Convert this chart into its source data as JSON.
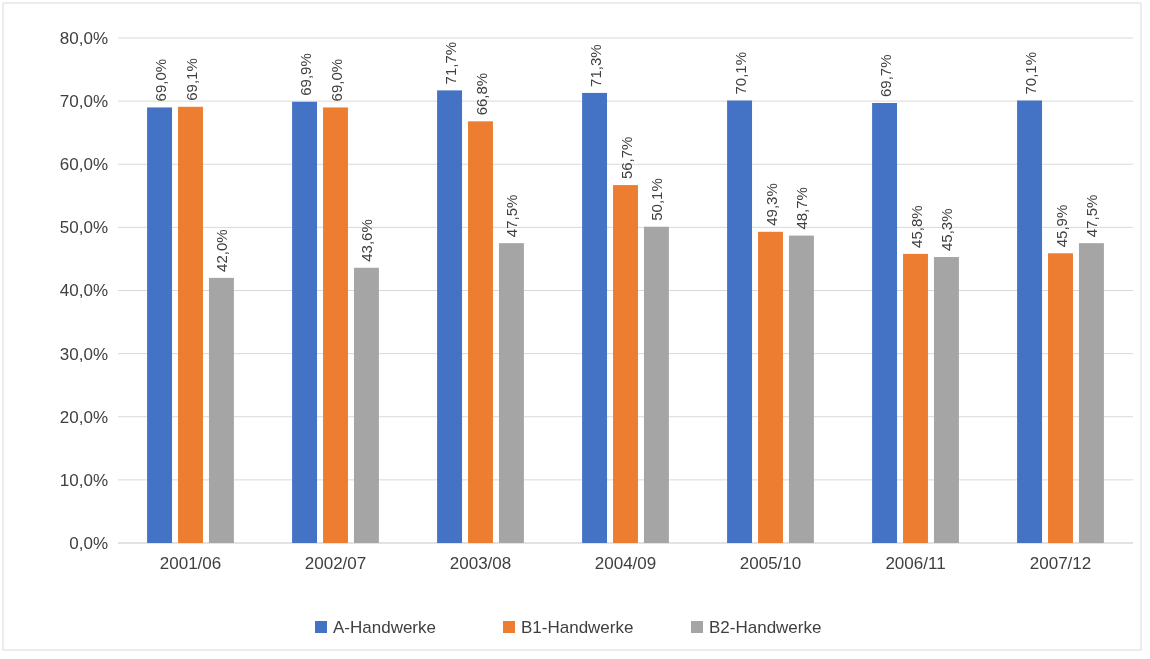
{
  "chart_data": {
    "type": "bar",
    "categories": [
      "2001/06",
      "2002/07",
      "2003/08",
      "2004/09",
      "2005/10",
      "2006/11",
      "2007/12"
    ],
    "series": [
      {
        "name": "A-Handwerke",
        "color": "#4472c4",
        "values": [
          69.0,
          69.9,
          71.7,
          71.3,
          70.1,
          69.7,
          70.1
        ],
        "value_labels": [
          "69,0%",
          "69,9%",
          "71,7%",
          "71,3%",
          "70,1%",
          "69,7%",
          "70,1%"
        ]
      },
      {
        "name": "B1-Handwerke",
        "color": "#ed7d31",
        "values": [
          69.1,
          69.0,
          66.8,
          56.7,
          49.3,
          45.8,
          45.9
        ],
        "value_labels": [
          "69,1%",
          "69,0%",
          "66,8%",
          "56,7%",
          "49,3%",
          "45,8%",
          "45,9%"
        ]
      },
      {
        "name": "B2-Handwerke",
        "color": "#a5a5a5",
        "values": [
          42.0,
          43.6,
          47.5,
          50.1,
          48.7,
          45.3,
          47.5
        ],
        "value_labels": [
          "42,0%",
          "43,6%",
          "47,5%",
          "50,1%",
          "48,7%",
          "45,3%",
          "47,5%"
        ]
      }
    ],
    "ylim": [
      0,
      80
    ],
    "yticks": [
      {
        "value": 0,
        "label": "0,0%"
      },
      {
        "value": 10,
        "label": "10,0%"
      },
      {
        "value": 20,
        "label": "20,0%"
      },
      {
        "value": 30,
        "label": "30,0%"
      },
      {
        "value": 40,
        "label": "40,0%"
      },
      {
        "value": 50,
        "label": "50,0%"
      },
      {
        "value": 60,
        "label": "60,0%"
      },
      {
        "value": 70,
        "label": "70,0%"
      },
      {
        "value": 80,
        "label": "80,0%"
      }
    ],
    "grid": "y",
    "legend": "bottom"
  }
}
